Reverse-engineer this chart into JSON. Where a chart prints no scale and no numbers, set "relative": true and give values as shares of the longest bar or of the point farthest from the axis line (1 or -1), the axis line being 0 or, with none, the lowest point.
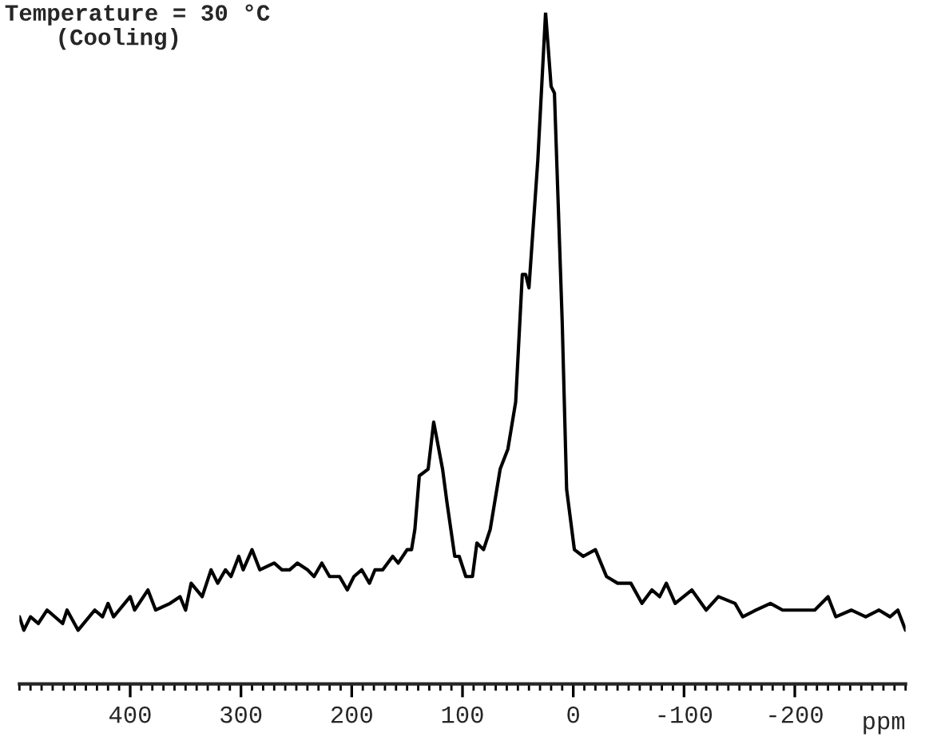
{
  "chart_data": {
    "type": "line",
    "title": "Temperature = 30 °C",
    "subtitle": "(Cooling)",
    "xlabel": "ppm",
    "relative": true,
    "xlim": [
      500,
      -300
    ],
    "xticks": [
      400,
      300,
      200,
      100,
      0,
      -100,
      -200
    ],
    "grid": false,
    "legend": false,
    "marker": "none",
    "line_style": "solid",
    "series": [
      {
        "color": "#000000",
        "x": [
          500,
          496,
          490,
          483,
          475,
          461,
          457,
          447,
          432,
          425,
          420,
          415,
          400,
          396,
          384,
          377,
          364,
          355,
          350,
          345,
          335,
          327,
          321,
          314,
          309,
          302,
          298,
          290,
          283,
          270,
          263,
          256,
          249,
          240,
          234,
          227,
          220,
          211,
          204,
          198,
          191,
          184,
          179,
          172,
          163,
          158,
          150,
          146,
          143,
          139,
          131,
          126,
          118,
          114,
          107,
          103,
          97,
          91,
          87,
          81,
          75,
          66,
          59,
          52,
          46,
          43,
          40,
          32,
          25,
          20,
          17,
          10,
          6,
          -1,
          -9,
          -20,
          -30,
          -40,
          -52,
          -62,
          -71,
          -78,
          -84,
          -92,
          -107,
          -120,
          -131,
          -146,
          -153,
          -165,
          -178,
          -189,
          -204,
          -218,
          -230,
          -237,
          -251,
          -264,
          -276,
          -286,
          -293,
          -300
        ],
        "values": [
          0.1,
          0.08,
          0.1,
          0.09,
          0.11,
          0.09,
          0.11,
          0.08,
          0.11,
          0.1,
          0.12,
          0.1,
          0.13,
          0.11,
          0.14,
          0.11,
          0.12,
          0.13,
          0.11,
          0.15,
          0.13,
          0.17,
          0.15,
          0.17,
          0.16,
          0.19,
          0.17,
          0.2,
          0.17,
          0.18,
          0.17,
          0.17,
          0.18,
          0.17,
          0.16,
          0.18,
          0.16,
          0.16,
          0.14,
          0.16,
          0.17,
          0.15,
          0.17,
          0.17,
          0.19,
          0.18,
          0.2,
          0.2,
          0.23,
          0.31,
          0.32,
          0.39,
          0.32,
          0.27,
          0.19,
          0.19,
          0.16,
          0.16,
          0.21,
          0.2,
          0.23,
          0.32,
          0.35,
          0.42,
          0.61,
          0.61,
          0.59,
          0.78,
          1,
          0.89,
          0.88,
          0.54,
          0.29,
          0.2,
          0.19,
          0.2,
          0.16,
          0.15,
          0.15,
          0.12,
          0.14,
          0.13,
          0.15,
          0.12,
          0.14,
          0.11,
          0.13,
          0.12,
          0.1,
          0.11,
          0.12,
          0.11,
          0.11,
          0.11,
          0.13,
          0.1,
          0.11,
          0.1,
          0.11,
          0.1,
          0.11,
          0.08
        ]
      }
    ]
  }
}
